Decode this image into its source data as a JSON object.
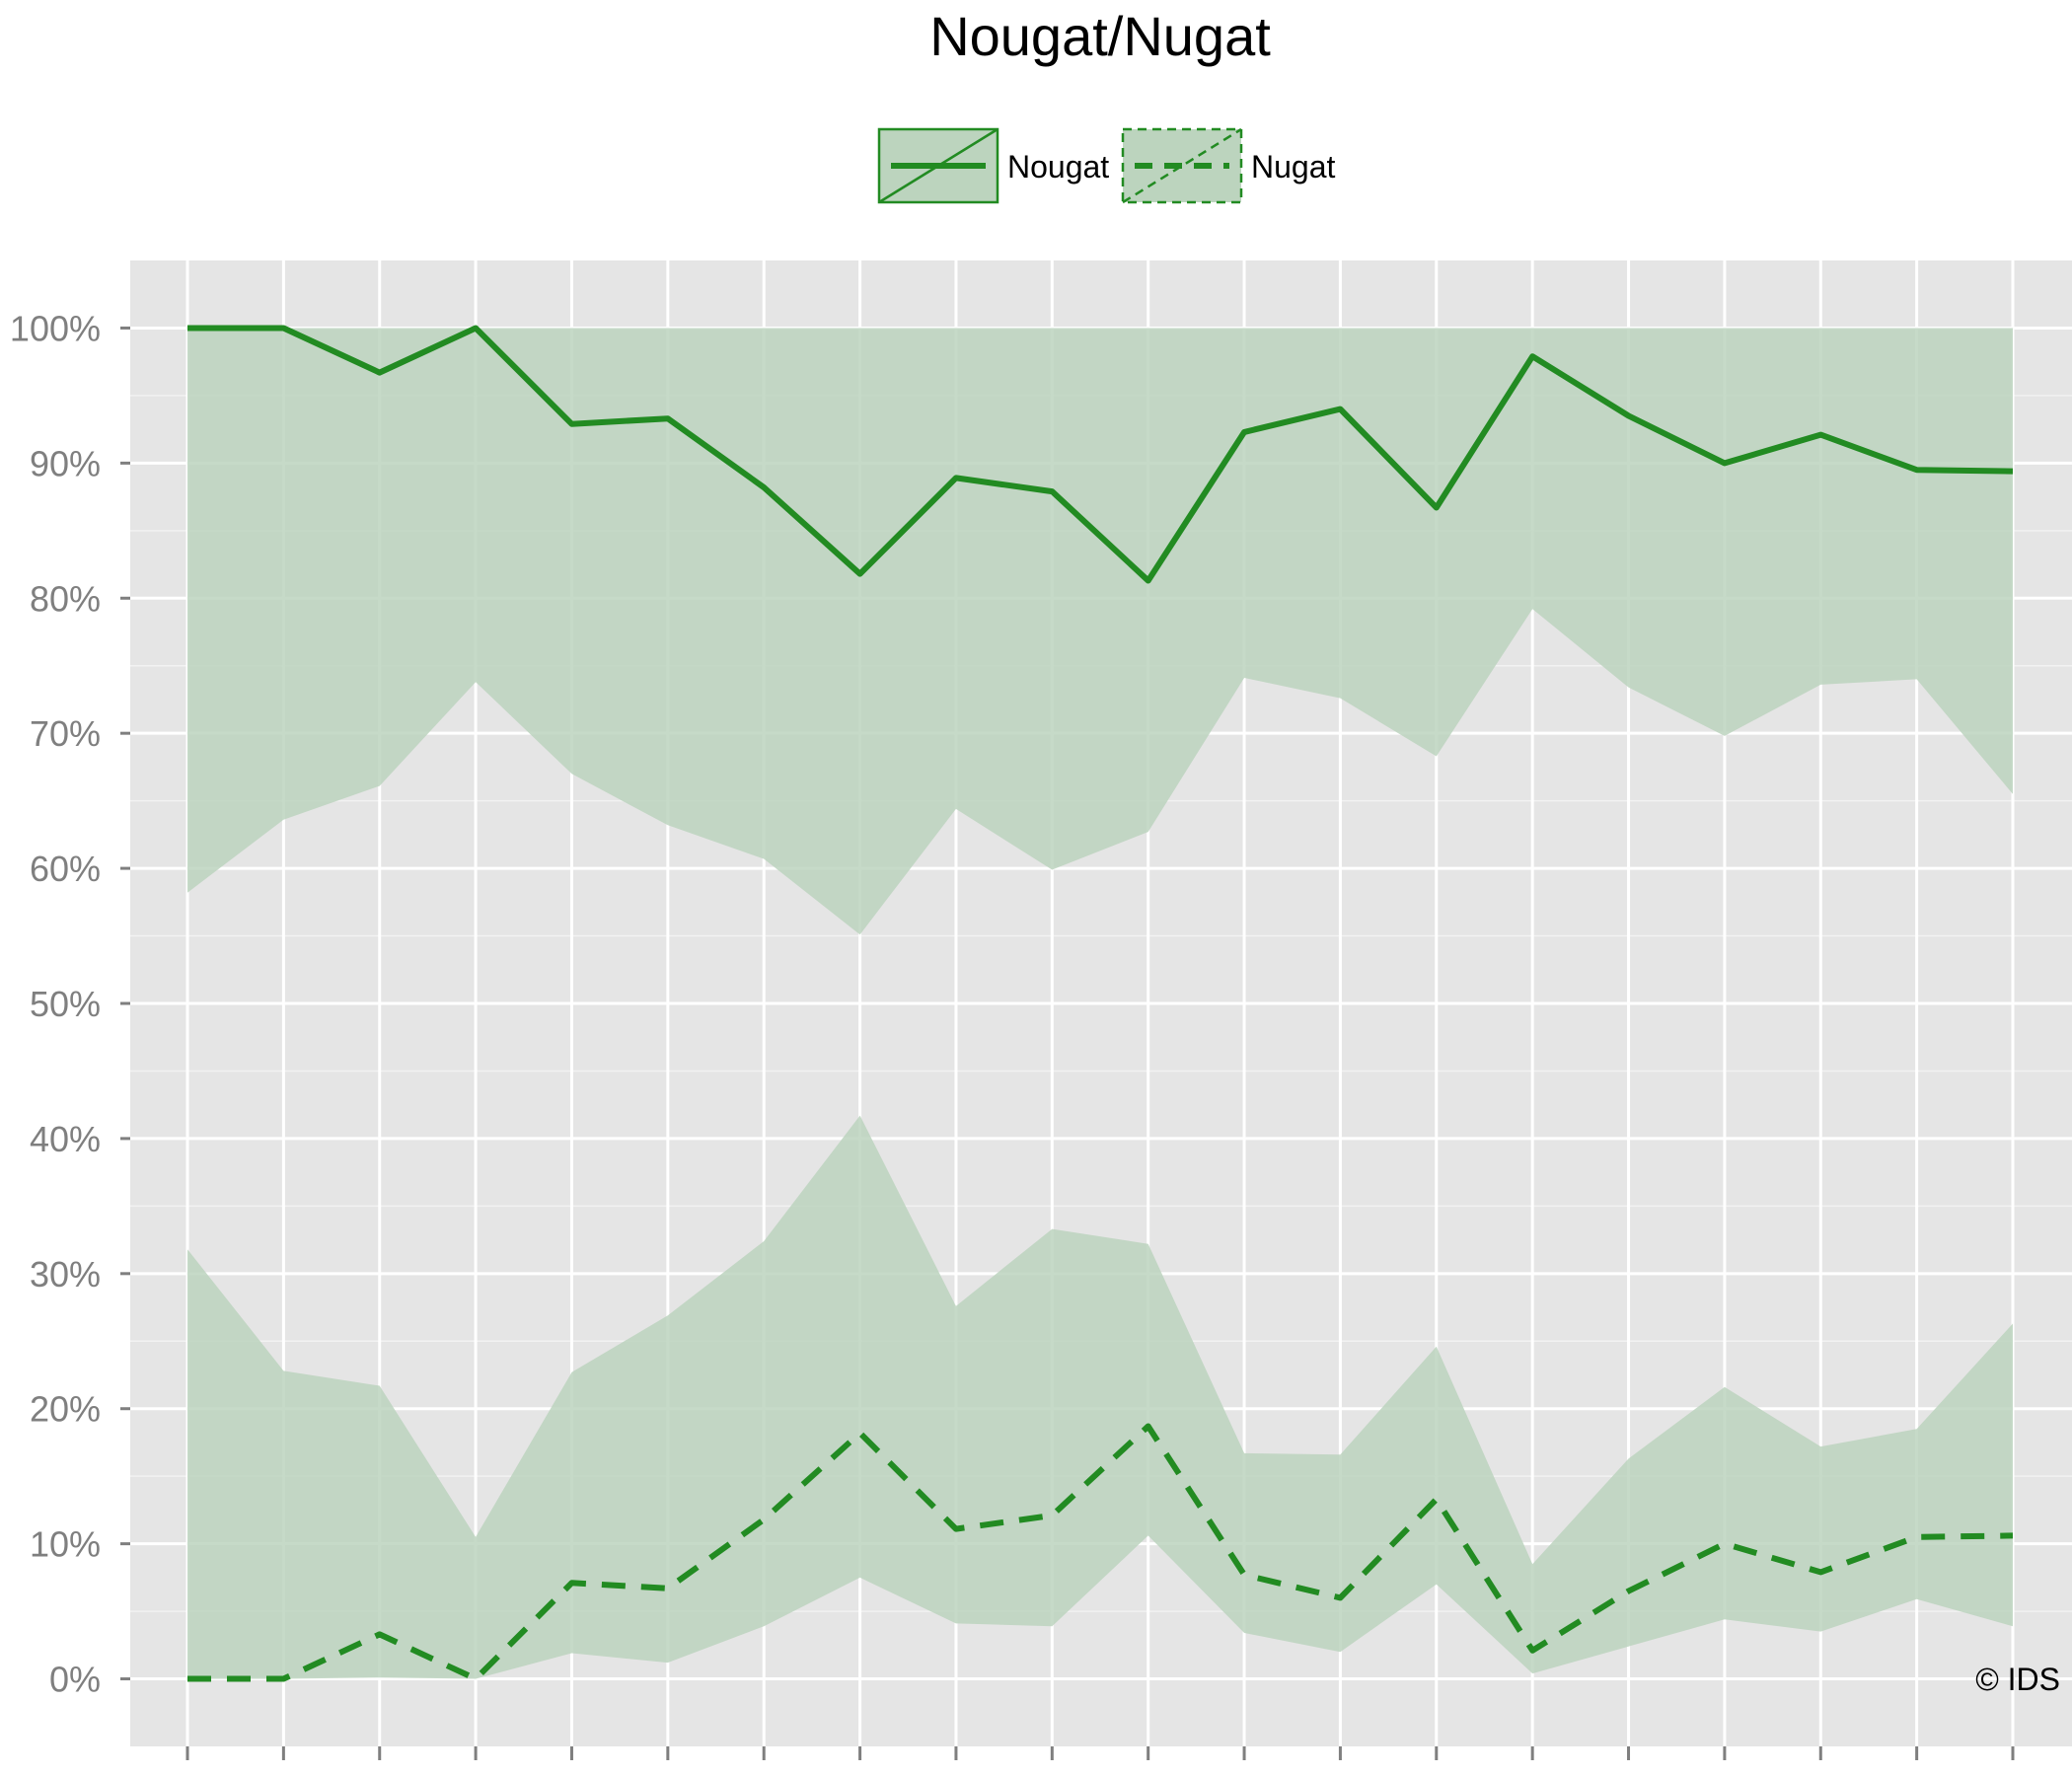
{
  "chart_data": {
    "type": "line",
    "title": "Nougat/Nugat",
    "xlabel": "",
    "ylabel": "",
    "x": [
      1,
      2,
      3,
      4,
      5,
      6,
      7,
      8,
      9,
      10,
      11,
      12,
      13,
      14,
      15,
      16,
      17,
      18,
      19,
      20
    ],
    "x_tick_labels": [],
    "ylim": [
      -5,
      105
    ],
    "y_ticks": [
      0,
      10,
      20,
      30,
      40,
      50,
      60,
      70,
      80,
      90,
      100
    ],
    "y_tick_labels": [
      "0%",
      "10%",
      "20%",
      "30%",
      "40%",
      "50%",
      "60%",
      "70%",
      "80%",
      "90%",
      "100%"
    ],
    "grid": true,
    "legend_position": "top",
    "series": [
      {
        "name": "Nougat",
        "line_style": "solid",
        "color": "#228B22",
        "band_color": "#BCD4BE",
        "values": [
          100,
          100,
          96.7,
          100,
          92.9,
          93.3,
          88.2,
          81.8,
          88.9,
          87.9,
          81.3,
          92.3,
          94.0,
          86.7,
          97.9,
          93.5,
          90.0,
          92.1,
          89.5,
          89.4
        ],
        "lower": [
          58.2,
          63.6,
          66.1,
          73.8,
          67.0,
          63.2,
          60.7,
          55.1,
          64.4,
          59.9,
          62.7,
          74.1,
          72.6,
          68.3,
          79.2,
          73.4,
          69.8,
          73.6,
          74.0,
          65.5
        ],
        "upper": [
          100,
          100,
          100,
          100,
          100,
          100,
          100,
          100,
          100,
          100,
          100,
          100,
          100,
          100,
          100,
          100,
          100,
          100,
          100,
          100
        ]
      },
      {
        "name": "Nugat",
        "line_style": "dashed",
        "color": "#228B22",
        "band_color": "#BCD4BE",
        "values": [
          0,
          0,
          3.3,
          0,
          7.1,
          6.7,
          11.8,
          18.2,
          11.1,
          12.1,
          18.7,
          7.7,
          6.0,
          13.3,
          2.1,
          6.5,
          10.0,
          7.9,
          10.5,
          10.6
        ],
        "lower": [
          0,
          0,
          0.1,
          0,
          1.9,
          1.2,
          3.9,
          7.5,
          4.1,
          3.9,
          10.6,
          3.4,
          2.0,
          7.0,
          0.4,
          2.4,
          4.4,
          3.5,
          5.9,
          3.9
        ],
        "upper": [
          31.8,
          22.8,
          21.7,
          10.5,
          22.7,
          26.9,
          32.4,
          41.7,
          27.6,
          33.3,
          32.2,
          16.7,
          16.6,
          24.6,
          8.5,
          16.3,
          21.6,
          17.2,
          18.5,
          26.3
        ]
      }
    ]
  },
  "watermark": "© IDS",
  "colors": {
    "panel_background": "#E5E5E5",
    "grid": "#FFFFFF",
    "tick_label": "#7F7F7F"
  }
}
